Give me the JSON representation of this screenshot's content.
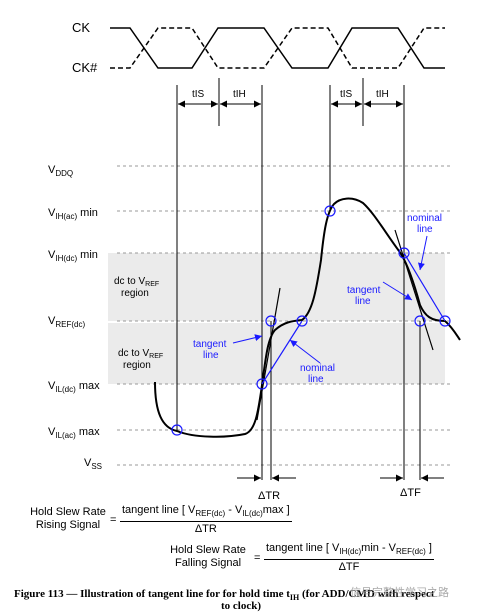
{
  "signals": {
    "ck": "CK",
    "ck_bar": "CK#"
  },
  "timing": {
    "tis": "tIS",
    "tih": "tIH"
  },
  "levels": {
    "vddq": {
      "main": "V",
      "sub": "DDQ",
      "suffix": ""
    },
    "vih_ac": {
      "main": "V",
      "sub": "IH(ac)",
      "suffix": " min"
    },
    "vih_dc": {
      "main": "V",
      "sub": "IH(dc)",
      "suffix": " min"
    },
    "vref": {
      "main": "V",
      "sub": "REF(dc)",
      "suffix": ""
    },
    "vil_dc": {
      "main": "V",
      "sub": "IL(dc)",
      "suffix": " max"
    },
    "vil_ac": {
      "main": "V",
      "sub": "IL(ac)",
      "suffix": " max"
    },
    "vss": {
      "main": "V",
      "sub": "SS",
      "suffix": ""
    }
  },
  "regions": {
    "upper_line1_a": "dc to V",
    "upper_line1_sub": "REF",
    "upper_line2": "region",
    "lower_line1_a": "dc to V",
    "lower_line1_sub": "REF",
    "lower_line2": "region"
  },
  "annotations": {
    "tangent_left_1": "tangent",
    "tangent_left_2": "line",
    "nominal_left_1": "nominal",
    "nominal_left_2": "line",
    "tangent_right_1": "tangent",
    "tangent_right_2": "line",
    "nominal_right_1": "nominal",
    "nominal_right_2": "line"
  },
  "deltas": {
    "rise": "ΔTR",
    "fall": "ΔTF"
  },
  "equations": {
    "rising": {
      "lhs_line1": "Hold Slew Rate",
      "lhs_line2": "Rising Signal",
      "equals": "=",
      "num_a": "tangent line [ V",
      "num_sub1": "REF(dc)",
      "num_b": " - V",
      "num_sub2": "IL(dc)",
      "num_c": "max ]",
      "den": "ΔTR"
    },
    "falling": {
      "lhs_line1": "Hold Slew Rate",
      "lhs_line2": "Falling Signal",
      "equals": "=",
      "num_a": "tangent line [ V",
      "num_sub1": "IH(dc)",
      "num_b": "min - V",
      "num_sub2": "REF(dc)",
      "num_c": " ]",
      "den": "ΔTF"
    }
  },
  "caption": {
    "line1_a": "Figure 113 — Illustration of tangent line for for hold time t",
    "line1_sub": "IH",
    "line1_b": " (for ADD/CMD with respect",
    "line2": "to clock)"
  },
  "watermark": "信号完整性学习之路",
  "colors": {
    "annotation": "#1a1aff",
    "region_fill": "#ebebeb",
    "grid_dash": "#9a9a9a"
  }
}
